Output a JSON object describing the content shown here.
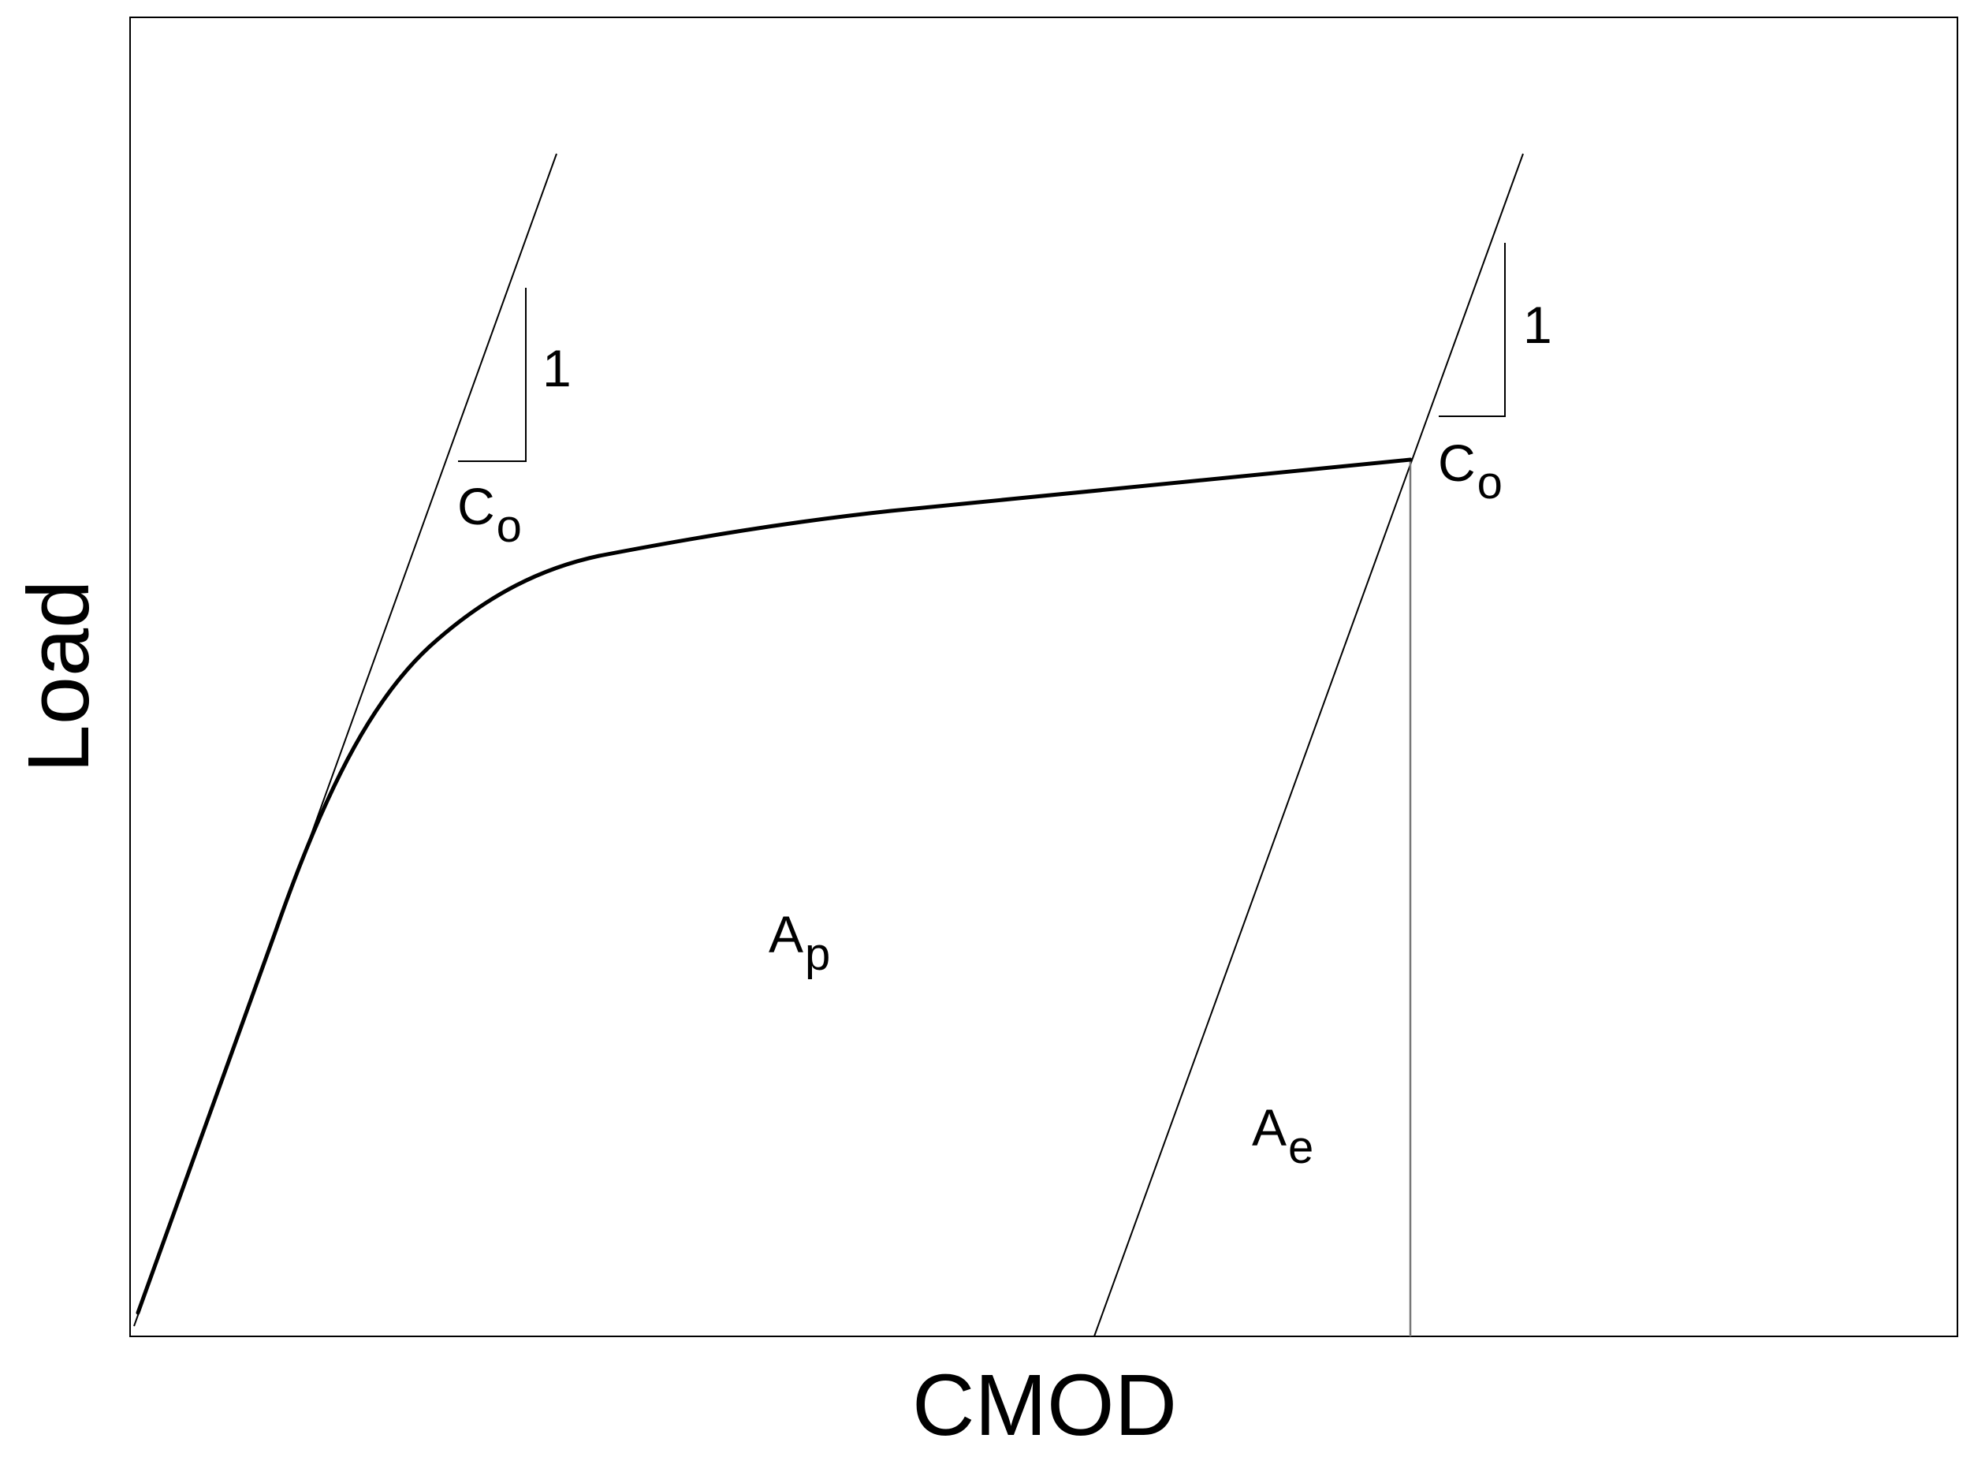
{
  "axes": {
    "x_label": "CMOD",
    "y_label": "Load"
  },
  "annotations": {
    "slope_left": {
      "symbol": "C",
      "subscript": "o",
      "rise": "1"
    },
    "slope_right": {
      "symbol": "C",
      "subscript": "o",
      "rise": "1"
    },
    "area_plastic": {
      "symbol": "A",
      "subscript": "p"
    },
    "area_elastic": {
      "symbol": "A",
      "subscript": "e"
    }
  },
  "colors": {
    "curve": "#000000",
    "thin_line": "#000000",
    "vertical_line": "#777777"
  }
}
